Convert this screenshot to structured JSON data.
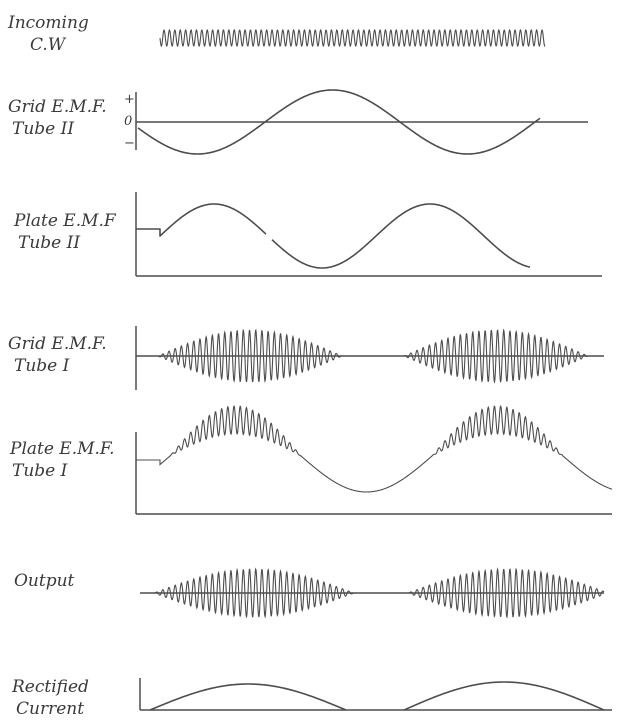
{
  "labels": {
    "incoming": [
      "Incoming",
      "C.W"
    ],
    "grid2": [
      "Grid E.M.F.",
      "Tube II"
    ],
    "plate2": [
      "Plate E.M.F",
      "Tube II"
    ],
    "grid1": [
      "Grid E.M.F.",
      "Tube I"
    ],
    "plate1": [
      "Plate E.M.F.",
      "Tube I"
    ],
    "output": [
      "Output"
    ],
    "rectified": [
      "Rectified",
      "Current"
    ]
  },
  "ticks": {
    "plus": "+",
    "zero": "0",
    "minus": "−"
  },
  "colors": {
    "ink": "#4d4d4d",
    "background": "#ffffff"
  }
}
